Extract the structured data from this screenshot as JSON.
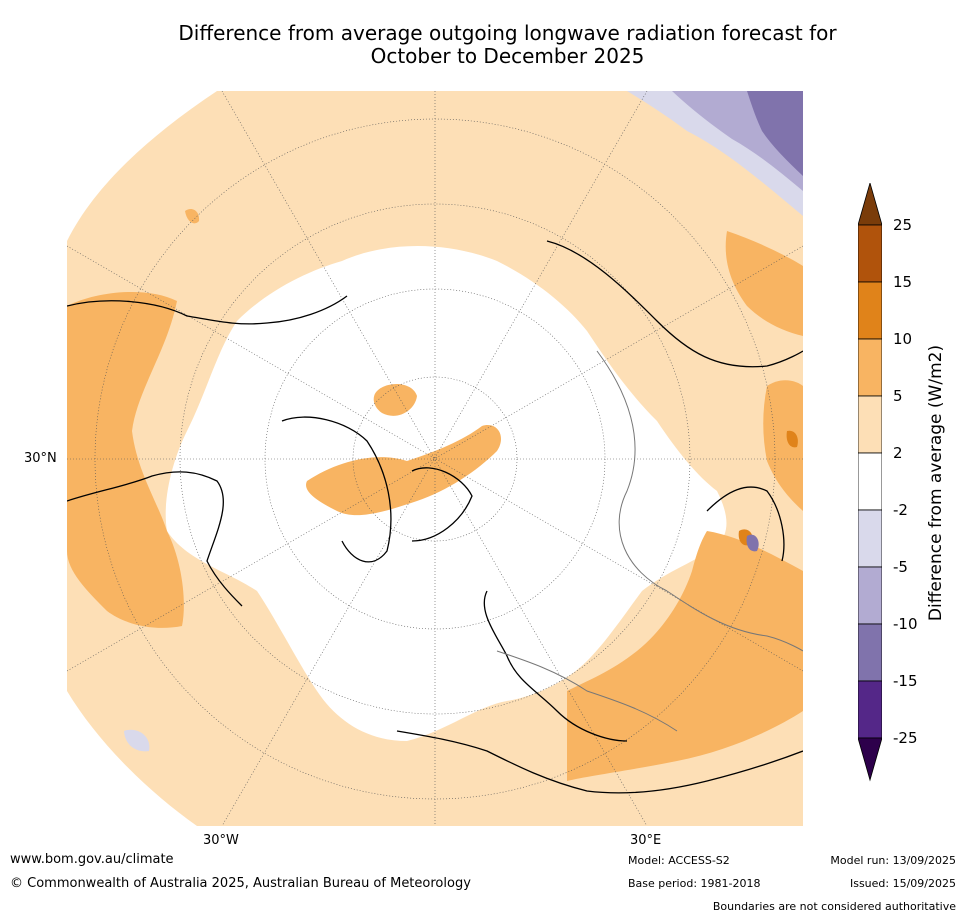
{
  "title_line1": "Difference from average outgoing longwave radiation forecast for",
  "title_line2": "October to December 2025",
  "map": {
    "lat_label": "30°N",
    "lon_labels": [
      "30°W",
      "30°E"
    ]
  },
  "colorbar": {
    "title": "Difference from average (W/m2)",
    "levels": [
      "25",
      "15",
      "10",
      "5",
      "2",
      "-2",
      "-5",
      "-10",
      "-15",
      "-25"
    ],
    "colors": [
      "#7a3c0a",
      "#b0530c",
      "#e0831a",
      "#f8b462",
      "#fddfb6",
      "#ffffff",
      "#d9d9eb",
      "#b2abd2",
      "#8073ac",
      "#542788",
      "#2d004b"
    ]
  },
  "footer": {
    "url": "www.bom.gov.au/climate",
    "copyright": "© Commonwealth of Australia 2025, Australian Bureau of Meteorology",
    "model": "Model: ACCESS-S2",
    "base_period": "Base period: 1981-2018",
    "model_run": "Model run: 13/09/2025",
    "issued": "Issued: 15/09/2025",
    "disclaimer": "Boundaries are not considered authoritative"
  }
}
